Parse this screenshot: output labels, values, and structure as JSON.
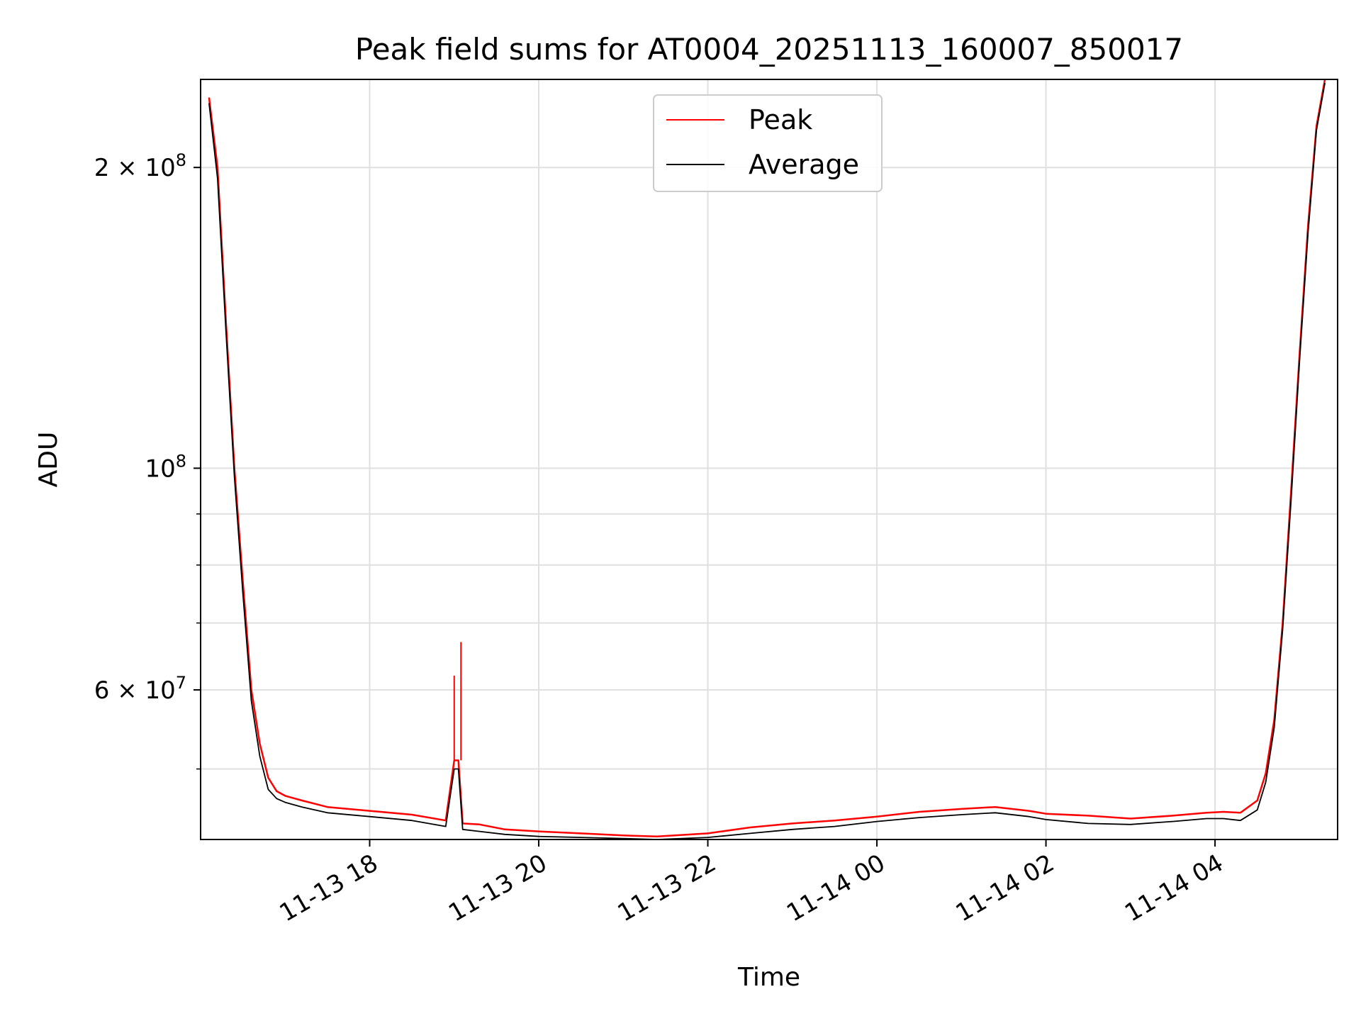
{
  "chart_data": {
    "type": "line",
    "title": "Peak field sums for AT0004_20251113_160007_850017",
    "xlabel": "Time",
    "ylabel": "ADU",
    "yscale": "log",
    "ylim": [
      42500000,
      245000000
    ],
    "xlim_hours": [
      16.0,
      29.45
    ],
    "grid": true,
    "legend_position": "upper center",
    "x_ticks": [
      {
        "hour": 18,
        "label": "11-13 18"
      },
      {
        "hour": 20,
        "label": "11-13 20"
      },
      {
        "hour": 22,
        "label": "11-13 22"
      },
      {
        "hour": 24,
        "label": "11-14 00"
      },
      {
        "hour": 26,
        "label": "11-14 02"
      },
      {
        "hour": 28,
        "label": "11-14 04"
      }
    ],
    "y_ticks_major": [
      {
        "value": 200000000,
        "mantissa": "2",
        "exp": "8"
      },
      {
        "value": 100000000,
        "mantissa": "",
        "exp": "8"
      },
      {
        "value": 60000000,
        "mantissa": "6",
        "exp": "7"
      }
    ],
    "y_ticks_minor": [
      50000000,
      70000000,
      80000000,
      90000000
    ],
    "series": [
      {
        "name": "Peak",
        "color": "#ff0000",
        "x": [
          16.1,
          16.2,
          16.3,
          16.4,
          16.5,
          16.6,
          16.7,
          16.8,
          16.9,
          17.0,
          17.2,
          17.5,
          18.0,
          18.5,
          18.9,
          19.0,
          19.05,
          19.1,
          19.3,
          19.6,
          20.0,
          20.5,
          21.0,
          21.4,
          22.0,
          22.5,
          23.0,
          23.5,
          24.0,
          24.5,
          25.0,
          25.4,
          25.8,
          26.0,
          26.5,
          27.0,
          27.5,
          27.9,
          28.1,
          28.3,
          28.5,
          28.6,
          28.7,
          28.8,
          28.9,
          29.0,
          29.1,
          29.2,
          29.3
        ],
        "y": [
          235000000,
          200000000,
          140000000,
          100000000,
          77000000,
          60000000,
          53000000,
          49000000,
          47500000,
          47000000,
          46500000,
          45800000,
          45400000,
          45000000,
          44400000,
          51000000,
          51000000,
          44100000,
          44000000,
          43500000,
          43300000,
          43100000,
          42900000,
          42800000,
          43100000,
          43700000,
          44100000,
          44400000,
          44800000,
          45300000,
          45600000,
          45800000,
          45400000,
          45100000,
          44900000,
          44600000,
          44900000,
          45200000,
          45300000,
          45200000,
          46500000,
          49500000,
          56000000,
          70000000,
          95000000,
          130000000,
          175000000,
          220000000,
          245000000
        ]
      },
      {
        "name": "Average",
        "color": "#000000",
        "x": [
          16.1,
          16.2,
          16.3,
          16.4,
          16.5,
          16.6,
          16.7,
          16.8,
          16.9,
          17.0,
          17.2,
          17.5,
          18.0,
          18.5,
          18.9,
          19.0,
          19.05,
          19.1,
          19.3,
          19.6,
          20.0,
          20.5,
          21.0,
          21.4,
          22.0,
          22.5,
          23.0,
          23.5,
          24.0,
          24.5,
          25.0,
          25.4,
          25.8,
          26.0,
          26.5,
          27.0,
          27.5,
          27.9,
          28.1,
          28.3,
          28.5,
          28.6,
          28.7,
          28.8,
          28.9,
          29.0,
          29.1,
          29.2,
          29.3
        ],
        "y": [
          232000000,
          195000000,
          137000000,
          98000000,
          75000000,
          58500000,
          51500000,
          47700000,
          46700000,
          46300000,
          45800000,
          45200000,
          44800000,
          44400000,
          43800000,
          50000000,
          50000000,
          43500000,
          43300000,
          43000000,
          42800000,
          42700000,
          42600000,
          42500000,
          42700000,
          43100000,
          43500000,
          43800000,
          44300000,
          44700000,
          45000000,
          45200000,
          44800000,
          44500000,
          44100000,
          44000000,
          44300000,
          44600000,
          44600000,
          44400000,
          45500000,
          48500000,
          55000000,
          69000000,
          93000000,
          128000000,
          172000000,
          218000000,
          243000000
        ]
      }
    ],
    "spikes": [
      {
        "hour": 19.0,
        "value": 62000000
      },
      {
        "hour": 19.08,
        "value": 67000000
      }
    ]
  }
}
